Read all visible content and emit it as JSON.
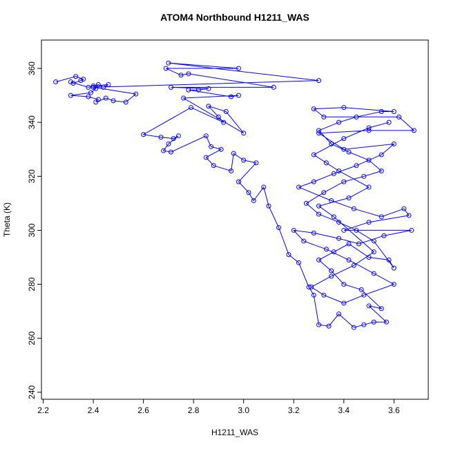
{
  "chart_data": {
    "type": "scatter-line",
    "title": "ATOM4 Northbound H1211_WAS",
    "x_label": "H1211_WAS",
    "y_label": "Theta (K)",
    "color": "#0000ff",
    "xlim": [
      2.193,
      3.737
    ],
    "ylim": [
      237.4,
      370.5
    ],
    "xticks": [
      2.2,
      2.4,
      2.6,
      2.8,
      {
        "value": 3,
        "label": "3.0"
      },
      3.2,
      3.4,
      3.6
    ],
    "yticks": [
      240,
      260,
      280,
      300,
      320,
      340,
      360
    ],
    "x": [
      2.25,
      2.33,
      2.36,
      2.35,
      2.32,
      2.31,
      2.38,
      2.42,
      2.44,
      2.46,
      2.4,
      2.41,
      2.39,
      2.31,
      2.38,
      2.42,
      2.41,
      2.45,
      2.48,
      2.53,
      2.57,
      2.4,
      3.3,
      2.7,
      2.98,
      2.69,
      2.75,
      2.78,
      3.12,
      2.71,
      2.86,
      2.82,
      2.78,
      2.95,
      2.98,
      2.76,
      3.0,
      2.93,
      2.86,
      2.9,
      2.92,
      2.79,
      2.6,
      2.67,
      2.72,
      2.74,
      2.7,
      2.68,
      2.71,
      2.85,
      2.87,
      2.91,
      2.85,
      2.88,
      2.95,
      2.96,
      3.0,
      3.05,
      2.98,
      3.02,
      3.04,
      3.08,
      3.1,
      3.14,
      3.18,
      3.22,
      3.26,
      3.28,
      3.3,
      3.34,
      3.38,
      3.44,
      3.48,
      3.52,
      3.57,
      3.5,
      3.55,
      3.47,
      3.4,
      3.35,
      3.3,
      3.36,
      3.42,
      3.5,
      3.58,
      3.6,
      3.52,
      3.45,
      3.38,
      3.3,
      3.25,
      3.32,
      3.4,
      3.48,
      3.55,
      3.5,
      3.42,
      3.35,
      3.3,
      3.38,
      3.45,
      3.55,
      3.6,
      3.4,
      3.28,
      3.32,
      3.62,
      3.68,
      3.5,
      3.3,
      3.4,
      3.6,
      3.55,
      3.45,
      3.36,
      3.28,
      3.22,
      3.35,
      3.44,
      3.55,
      3.64,
      3.66,
      3.5,
      3.4,
      3.67,
      3.56,
      3.46,
      3.38,
      3.28,
      3.2,
      3.24,
      3.33,
      3.42,
      3.52,
      3.6,
      3.48,
      3.4,
      3.32,
      3.27,
      3.35,
      3.44,
      3.52,
      3.36,
      3.3,
      3.42,
      3.5,
      3.38,
      3.33,
      3.28,
      3.4,
      3.5,
      3.58
    ],
    "y": [
      355,
      357,
      356,
      355.5,
      354.5,
      355,
      353,
      354,
      353,
      354,
      353.5,
      352.5,
      351,
      350,
      349.5,
      348.5,
      347.5,
      349,
      348,
      347.5,
      350.5,
      353,
      355.5,
      362,
      360,
      360,
      357.5,
      358,
      353,
      353,
      352.5,
      352,
      352,
      349.5,
      350,
      349,
      336,
      344,
      346,
      342,
      340,
      345.5,
      335.5,
      334.5,
      334,
      335,
      332,
      329.5,
      329,
      335,
      331,
      330,
      327,
      324,
      322,
      328.5,
      326,
      325,
      318,
      314,
      311,
      316,
      309,
      301,
      291,
      288,
      279,
      276,
      265,
      264.5,
      269,
      264,
      265,
      266,
      266,
      272,
      271,
      278,
      280,
      285,
      289,
      292,
      295,
      290,
      289,
      286,
      296,
      300,
      303,
      306,
      310,
      314,
      318,
      320,
      322,
      326,
      329,
      332,
      337,
      340,
      342,
      344,
      344,
      345.5,
      345,
      342,
      342,
      337,
      337,
      336,
      330,
      332,
      328,
      324,
      321,
      318,
      316,
      311,
      308,
      305,
      308,
      305.5,
      303,
      300,
      300,
      298,
      295,
      297,
      299,
      300,
      296,
      293,
      289,
      284,
      280,
      276,
      273,
      276,
      279,
      283,
      287,
      292,
      305,
      309,
      312,
      316,
      322,
      325,
      328,
      334,
      338,
      340
    ]
  }
}
